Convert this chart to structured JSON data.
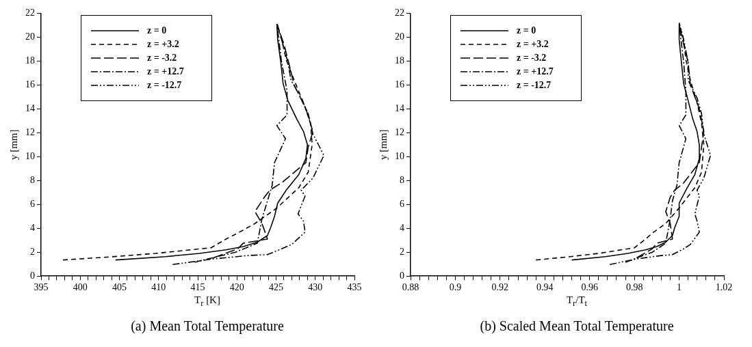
{
  "chart_data": [
    {
      "type": "line",
      "title": "(a) Mean Total Temperature",
      "xlabel": "T$_{r}$ [K]",
      "ylabel": "y [mm]",
      "xlim": [
        395,
        435
      ],
      "ylim": [
        0,
        22
      ],
      "xticks": [
        395,
        {
          "value": 396,
          "label": null
        },
        {
          "value": 397,
          "label": null
        },
        {
          "value": 398,
          "label": null
        },
        {
          "value": 399,
          "label": null
        },
        400,
        {
          "value": 401,
          "label": null
        },
        {
          "value": 402,
          "label": null
        },
        {
          "value": 403,
          "label": null
        },
        {
          "value": 404,
          "label": null
        },
        405,
        {
          "value": 406,
          "label": null
        },
        {
          "value": 407,
          "label": null
        },
        {
          "value": 408,
          "label": null
        },
        {
          "value": 409,
          "label": null
        },
        410,
        {
          "value": 411,
          "label": null
        },
        {
          "value": 412,
          "label": null
        },
        {
          "value": 413,
          "label": null
        },
        {
          "value": 414,
          "label": null
        },
        415,
        {
          "value": 416,
          "label": null
        },
        {
          "value": 417,
          "label": null
        },
        {
          "value": 418,
          "label": null
        },
        {
          "value": 419,
          "label": null
        },
        420,
        {
          "value": 421,
          "label": null
        },
        {
          "value": 422,
          "label": null
        },
        {
          "value": 423,
          "label": null
        },
        {
          "value": 424,
          "label": null
        },
        425,
        {
          "value": 426,
          "label": null
        },
        {
          "value": 427,
          "label": null
        },
        {
          "value": 428,
          "label": null
        },
        {
          "value": 429,
          "label": null
        },
        430,
        {
          "value": 431,
          "label": null
        },
        {
          "value": 432,
          "label": null
        },
        {
          "value": 433,
          "label": null
        },
        {
          "value": 434,
          "label": null
        },
        435
      ],
      "yticks": [
        0,
        2,
        4,
        6,
        8,
        10,
        12,
        14,
        16,
        18,
        20,
        22
      ],
      "grid": false,
      "legend": "top left",
      "series": [
        {
          "name": "z = 0",
          "color": "#000000",
          "line_style": "solid",
          "x": [
            404.5,
            410.9,
            415.2,
            418.6,
            420.8,
            422.6,
            423.9,
            424.3,
            424.8,
            425.2,
            426.3,
            427.9,
            428.8,
            429.0,
            428.5,
            427.6,
            426.5,
            425.9,
            425.6,
            425.2,
            425.1
          ],
          "values": [
            1.35,
            1.63,
            1.9,
            2.2,
            2.47,
            2.84,
            3.4,
            4.06,
            5.0,
            6.1,
            7.2,
            8.5,
            9.85,
            11.0,
            12.1,
            13.2,
            14.7,
            16.1,
            17.9,
            19.8,
            21.1
          ]
        },
        {
          "name": "z = +3.2",
          "color": "#000000",
          "line_style": "dashed",
          "x": [
            397.8,
            403.7,
            409.6,
            416.7,
            418.6,
            420.1,
            422.3,
            425.1,
            427.9,
            429.1,
            429.6,
            429.4,
            428.5,
            427.3,
            426.3,
            425.7,
            425.1
          ],
          "values": [
            1.35,
            1.6,
            1.9,
            2.37,
            3.1,
            3.6,
            4.4,
            5.7,
            7.4,
            8.7,
            11.0,
            12.8,
            14.5,
            16.4,
            18.1,
            19.8,
            21.1
          ]
        },
        {
          "name": "z = -3.2",
          "color": "#000000",
          "line_style": "long-dashed",
          "x": [
            417.0,
            420.1,
            420.8,
            423.9,
            423.2,
            422.3,
            423.5,
            424.2,
            425.7,
            428.8,
            429.1,
            429.7,
            428.8,
            427.3,
            426.6,
            426.0,
            425.1
          ],
          "values": [
            1.53,
            2.28,
            2.75,
            3.1,
            4.4,
            5.4,
            6.6,
            7.2,
            7.8,
            9.5,
            10.8,
            12.1,
            14.0,
            16.0,
            17.9,
            19.4,
            21.1
          ]
        },
        {
          "name": "z = +12.7",
          "color": "#000000",
          "line_style": "dash-dot",
          "x": [
            414.6,
            419.8,
            422.6,
            423.2,
            423.9,
            424.5,
            424.8,
            426.2,
            425.1,
            426.4,
            426.4,
            425.7,
            425.1
          ],
          "values": [
            1.16,
            2.0,
            2.75,
            4.8,
            6.3,
            7.6,
            9.5,
            11.5,
            12.6,
            13.5,
            15.5,
            17.9,
            21.1
          ]
        },
        {
          "name": "z = -12.7",
          "color": "#000000",
          "line_style": "dash-dot-dot",
          "x": [
            411.8,
            417.0,
            421.4,
            423.9,
            425.7,
            427.0,
            428.7,
            428.5,
            427.8,
            428.7,
            428.2,
            429.7,
            431.1,
            429.7,
            429.1,
            428.2,
            426.9,
            426.5,
            425.7,
            425.1
          ],
          "values": [
            0.97,
            1.44,
            1.72,
            1.8,
            2.28,
            2.65,
            3.68,
            4.6,
            5.2,
            6.7,
            7.2,
            8.2,
            10.1,
            11.9,
            13.6,
            14.9,
            16.4,
            17.9,
            19.8,
            21.2
          ]
        }
      ]
    },
    {
      "type": "line",
      "title": "(b) Scaled Mean Total Temperature",
      "xlabel": "T$_{r}$/T$_{t}$",
      "ylabel": "y [mm]",
      "xlim": [
        0.88,
        1.02
      ],
      "ylim": [
        0,
        22
      ],
      "xticks": [
        0.88,
        {
          "value": 0.884,
          "label": null
        },
        {
          "value": 0.888,
          "label": null
        },
        {
          "value": 0.892,
          "label": null
        },
        {
          "value": 0.896,
          "label": null
        },
        0.9,
        {
          "value": 0.904,
          "label": null
        },
        {
          "value": 0.908,
          "label": null
        },
        {
          "value": 0.912,
          "label": null
        },
        {
          "value": 0.916,
          "label": null
        },
        0.92,
        {
          "value": 0.924,
          "label": null
        },
        {
          "value": 0.928,
          "label": null
        },
        {
          "value": 0.932,
          "label": null
        },
        {
          "value": 0.936,
          "label": null
        },
        0.94,
        {
          "value": 0.944,
          "label": null
        },
        {
          "value": 0.948,
          "label": null
        },
        {
          "value": 0.952,
          "label": null
        },
        {
          "value": 0.956,
          "label": null
        },
        0.96,
        {
          "value": 0.964,
          "label": null
        },
        {
          "value": 0.968,
          "label": null
        },
        {
          "value": 0.972,
          "label": null
        },
        {
          "value": 0.976,
          "label": null
        },
        0.98,
        {
          "value": 0.984,
          "label": null
        },
        {
          "value": 0.988,
          "label": null
        },
        {
          "value": 0.992,
          "label": null
        },
        {
          "value": 0.996,
          "label": null
        },
        1,
        {
          "value": 1.004,
          "label": null
        },
        {
          "value": 1.008,
          "label": null
        },
        {
          "value": 1.012,
          "label": null
        },
        {
          "value": 1.016,
          "label": null
        },
        1.02
      ],
      "yticks": [
        0,
        2,
        4,
        6,
        8,
        10,
        12,
        14,
        16,
        18,
        20,
        22
      ],
      "grid": false,
      "legend": "top left",
      "series": [
        {
          "name": "z = 0",
          "color": "#000000",
          "line_style": "solid",
          "x": [
            0.952,
            0.967,
            0.977,
            0.985,
            0.99,
            0.994,
            0.997,
            0.998,
            1.0,
            1.0,
            1.003,
            1.007,
            1.009,
            1.009,
            1.008,
            1.006,
            1.004,
            1.002,
            1.001,
            1.0,
            1.0
          ],
          "values": [
            1.35,
            1.63,
            1.9,
            2.2,
            2.47,
            2.84,
            3.4,
            4.06,
            5.0,
            6.1,
            7.2,
            8.5,
            9.85,
            11.0,
            12.1,
            13.2,
            14.7,
            16.1,
            17.9,
            19.8,
            21.1
          ]
        },
        {
          "name": "z = +3.2",
          "color": "#000000",
          "line_style": "dashed",
          "x": [
            0.936,
            0.95,
            0.964,
            0.98,
            0.985,
            0.988,
            0.994,
            1.0,
            1.007,
            1.01,
            1.011,
            1.01,
            1.008,
            1.005,
            1.003,
            1.002,
            1.0
          ],
          "values": [
            1.35,
            1.6,
            1.9,
            2.37,
            3.1,
            3.6,
            4.4,
            5.7,
            7.4,
            8.7,
            11.0,
            12.8,
            14.5,
            16.4,
            18.1,
            19.8,
            21.1
          ]
        },
        {
          "name": "z = -3.2",
          "color": "#000000",
          "line_style": "long-dashed",
          "x": [
            0.981,
            0.988,
            0.99,
            0.997,
            0.996,
            0.994,
            0.996,
            0.998,
            1.002,
            1.009,
            1.01,
            1.011,
            1.009,
            1.005,
            1.004,
            1.002,
            1.0
          ],
          "values": [
            1.53,
            2.28,
            2.75,
            3.1,
            4.4,
            5.4,
            6.6,
            7.2,
            7.8,
            9.5,
            10.8,
            12.1,
            14.0,
            16.0,
            17.9,
            19.4,
            21.1
          ]
        },
        {
          "name": "z = +12.7",
          "color": "#000000",
          "line_style": "dash-dot",
          "x": [
            0.976,
            0.988,
            0.994,
            0.996,
            0.997,
            0.999,
            1.0,
            1.003,
            1.0,
            1.003,
            1.003,
            1.002,
            1.0
          ],
          "values": [
            1.16,
            2.0,
            2.75,
            4.8,
            6.3,
            7.6,
            9.5,
            11.5,
            12.6,
            13.5,
            15.5,
            17.9,
            21.1
          ]
        },
        {
          "name": "z = -12.7",
          "color": "#000000",
          "line_style": "dash-dot-dot",
          "x": [
            0.969,
            0.981,
            0.992,
            0.997,
            1.002,
            1.005,
            1.009,
            1.008,
            1.007,
            1.009,
            1.008,
            1.011,
            1.014,
            1.011,
            1.01,
            1.008,
            1.004,
            1.004,
            1.002,
            1.0
          ],
          "values": [
            0.97,
            1.44,
            1.72,
            1.8,
            2.28,
            2.65,
            3.68,
            4.6,
            5.2,
            6.7,
            7.2,
            8.2,
            10.1,
            11.9,
            13.6,
            14.9,
            16.4,
            17.9,
            19.8,
            21.2
          ]
        }
      ]
    }
  ]
}
